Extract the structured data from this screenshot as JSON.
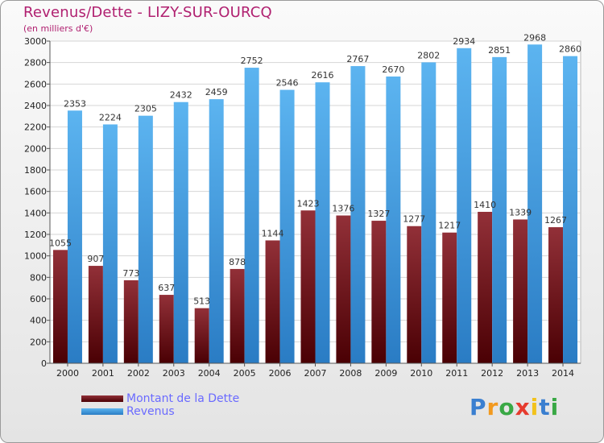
{
  "header": {
    "title": "Revenus/Dette - LIZY-SUR-OURCQ",
    "subtitle": "(en milliers d'€)"
  },
  "legend": {
    "debt_label": "Montant de la Dette",
    "revenue_label": "Revenus"
  },
  "logo": {
    "letters": [
      "P",
      "r",
      "o",
      "x",
      "i",
      "t",
      "i"
    ],
    "colors": [
      "#3a7fd0",
      "#f29a1f",
      "#39a845",
      "#e63b2e",
      "#f2c21b",
      "#3a7fd0",
      "#39a845"
    ]
  },
  "chart_data": {
    "type": "bar",
    "title": "Revenus/Dette - LIZY-SUR-OURCQ",
    "subtitle": "(en milliers d'€)",
    "categories": [
      "2000",
      "2001",
      "2002",
      "2003",
      "2004",
      "2005",
      "2006",
      "2007",
      "2008",
      "2009",
      "2010",
      "2011",
      "2012",
      "2013",
      "2014"
    ],
    "series": [
      {
        "name": "Montant de la Dette",
        "color": "#7a1518",
        "values": [
          1055,
          907,
          773,
          637,
          513,
          878,
          1144,
          1423,
          1376,
          1327,
          1277,
          1217,
          1410,
          1339,
          1267
        ],
        "labels": [
          "1055",
          "907",
          "773",
          "637",
          "513",
          "878",
          "1144",
          "1423",
          "1376",
          "1327",
          "1277",
          "1217",
          "1410",
          "1339",
          "1267"
        ]
      },
      {
        "name": "Revenus",
        "color": "#4aa3e8",
        "values": [
          2353,
          2224,
          2305,
          2432,
          2459,
          2752,
          2546,
          2616,
          2767,
          2670,
          2802,
          2934,
          2851,
          2968,
          2860
        ],
        "labels": [
          "2353",
          "2224",
          "2305",
          "2432",
          "2459",
          "2752",
          "2546",
          "2616",
          "2767",
          "2670",
          "2802",
          "2934",
          "2851",
          "2968",
          "2860"
        ]
      }
    ],
    "ylim": [
      0,
      3000
    ],
    "yticks": [
      0,
      200,
      400,
      600,
      800,
      1000,
      1200,
      1400,
      1600,
      1800,
      2000,
      2200,
      2400,
      2600,
      2800,
      3000
    ],
    "grid": true,
    "legend_position": "bottom-left"
  }
}
